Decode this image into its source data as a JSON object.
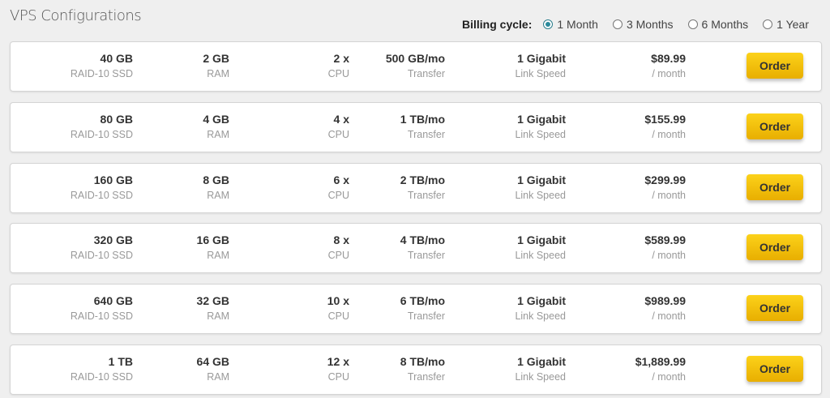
{
  "title": "VPS Configurations",
  "billing": {
    "label": "Billing cycle:",
    "options": [
      "1 Month",
      "3 Months",
      "6 Months",
      "1 Year"
    ],
    "selected": "1 Month",
    "accent": "#2a8a9c"
  },
  "sublabels": {
    "disk": "RAID-10 SSD",
    "ram": "RAM",
    "cpu": "CPU",
    "transfer": "Transfer",
    "link": "Link Speed",
    "price": "/ month"
  },
  "order_label": "Order",
  "plans": [
    {
      "disk": "40 GB",
      "ram": "2 GB",
      "cpu": "2 x",
      "transfer": "500 GB/mo",
      "link": "1 Gigabit",
      "price": "$89.99"
    },
    {
      "disk": "80 GB",
      "ram": "4 GB",
      "cpu": "4 x",
      "transfer": "1 TB/mo",
      "link": "1 Gigabit",
      "price": "$155.99"
    },
    {
      "disk": "160 GB",
      "ram": "8 GB",
      "cpu": "6 x",
      "transfer": "2 TB/mo",
      "link": "1 Gigabit",
      "price": "$299.99"
    },
    {
      "disk": "320 GB",
      "ram": "16 GB",
      "cpu": "8 x",
      "transfer": "4 TB/mo",
      "link": "1 Gigabit",
      "price": "$589.99"
    },
    {
      "disk": "640 GB",
      "ram": "32 GB",
      "cpu": "10 x",
      "transfer": "6 TB/mo",
      "link": "1 Gigabit",
      "price": "$989.99"
    },
    {
      "disk": "1 TB",
      "ram": "64 GB",
      "cpu": "12 x",
      "transfer": "8 TB/mo",
      "link": "1 Gigabit",
      "price": "$1,889.99"
    }
  ]
}
